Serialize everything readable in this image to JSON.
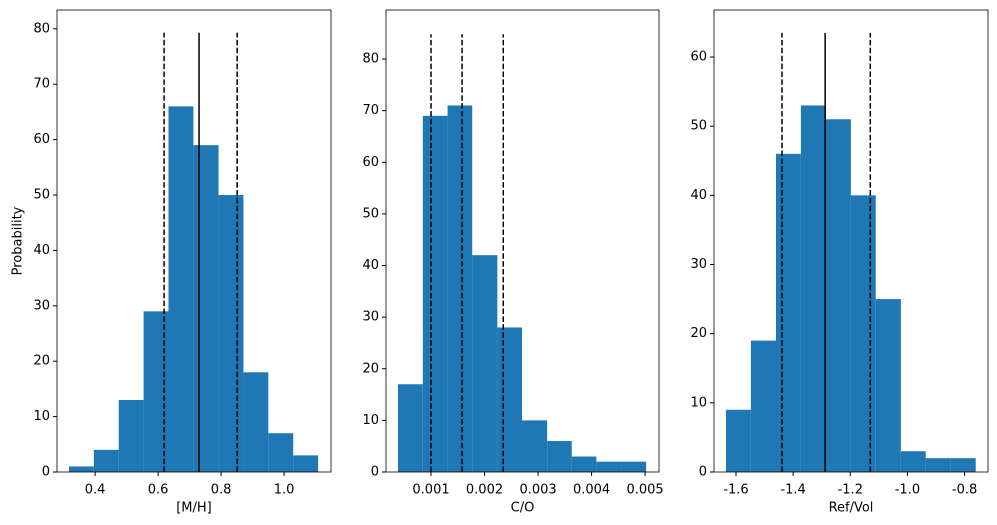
{
  "chart_data": [
    {
      "type": "histogram",
      "xlabel": "[M/H]",
      "ylabel": "Probability",
      "color": "#1f77b4",
      "bins": [
        0.317,
        0.396,
        0.475,
        0.554,
        0.633,
        0.712,
        0.792,
        0.871,
        0.95,
        1.029,
        1.108
      ],
      "values": [
        1,
        4,
        13,
        29,
        66,
        59,
        50,
        18,
        7,
        3
      ],
      "xlim": [
        0.279,
        1.149
      ],
      "ylim": [
        0,
        83.4
      ],
      "xticks": [
        0.4,
        0.6,
        0.8,
        {
          "value": 1,
          "label": "1.0"
        }
      ],
      "yticks": [
        0,
        10,
        20,
        30,
        40,
        50,
        60,
        70,
        80
      ],
      "vlines": [
        {
          "x": 0.619,
          "ymax": 79.3,
          "style": "dashed"
        },
        {
          "x": 0.73,
          "ymax": 79.3,
          "style": "solid"
        },
        {
          "x": 0.851,
          "ymax": 79.3,
          "style": "dashed"
        }
      ]
    },
    {
      "type": "histogram",
      "xlabel": "C/O",
      "color": "#1f77b4",
      "bins": [
        0.000383,
        0.000847,
        0.00131,
        0.00177,
        0.00224,
        0.0027,
        0.00317,
        0.00363,
        0.00409,
        0.00456,
        0.00502
      ],
      "values": [
        17,
        69,
        71,
        42,
        28,
        10,
        6,
        3,
        2,
        2
      ],
      "xlim": [
        0.000159,
        0.00526
      ],
      "ylim": [
        0,
        89.5
      ],
      "xticks": [
        0.001,
        0.002,
        0.003,
        0.004,
        0.005
      ],
      "yticks": [
        0,
        10,
        20,
        30,
        40,
        50,
        60,
        70,
        80
      ],
      "vlines": [
        {
          "x": 0.001,
          "ymax": 84.8,
          "style": "dashed"
        },
        {
          "x": 0.00158,
          "ymax": 84.8,
          "style": "dashed"
        },
        {
          "x": 0.00235,
          "ymax": 84.8,
          "style": "dashed"
        }
      ]
    },
    {
      "type": "histogram",
      "xlabel": "Ref/Vol",
      "color": "#1f77b4",
      "bins": [
        -1.635,
        -1.548,
        -1.46,
        -1.373,
        -1.285,
        -1.198,
        -1.111,
        -1.023,
        -0.936,
        -0.848,
        -0.761
      ],
      "values": [
        9,
        19,
        46,
        53,
        51,
        40,
        25,
        3,
        2,
        2
      ],
      "xlim": [
        -1.677,
        -0.718
      ],
      "ylim": [
        0,
        66.8
      ],
      "xticks": [
        -1.6,
        -1.4,
        -1.2,
        {
          "value": -1,
          "label": "-1.0"
        },
        -0.8
      ],
      "yticks": [
        0,
        10,
        20,
        30,
        40,
        50,
        60
      ],
      "vlines": [
        {
          "x": -1.439,
          "ymax": 63.5,
          "style": "dashed"
        },
        {
          "x": -1.288,
          "ymax": 63.5,
          "style": "solid"
        },
        {
          "x": -1.13,
          "ymax": 63.5,
          "style": "dashed"
        }
      ]
    }
  ]
}
